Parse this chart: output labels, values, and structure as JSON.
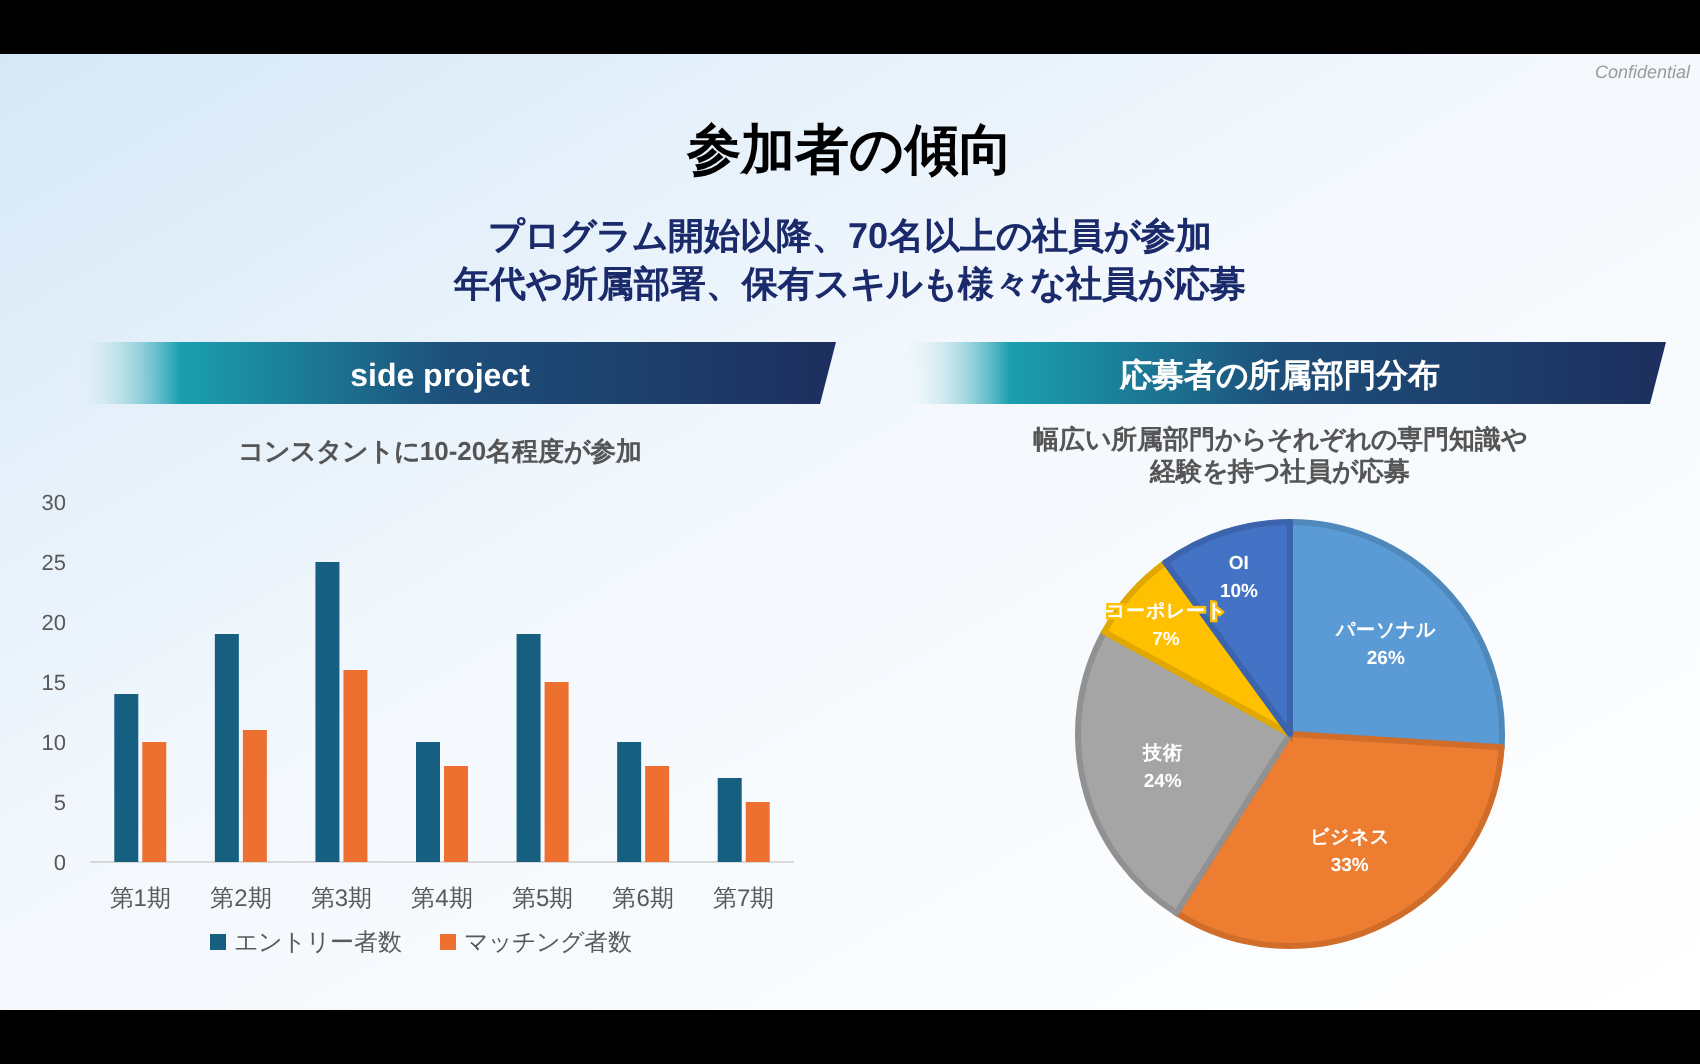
{
  "chart_data": [
    {
      "type": "bar",
      "title": "side project",
      "subtitle": "コンスタントに10-20名程度が参加",
      "annotations": [
        "参加者の傾向",
        "プログラム開始以降、70名以上の社員が参加",
        "年代や所属部署、保有スキルも様々な社員が応募",
        "Confidential"
      ],
      "categories": [
        "第1期",
        "第2期",
        "第3期",
        "第4期",
        "第5期",
        "第6期",
        "第7期"
      ],
      "series": [
        {
          "name": "エントリー者数",
          "color": "#175f80",
          "values": [
            14,
            19,
            25,
            10,
            19,
            10,
            7
          ]
        },
        {
          "name": "マッチング者数",
          "color": "#ed7031",
          "values": [
            10,
            11,
            16,
            8,
            15,
            8,
            5
          ]
        }
      ],
      "ylim": [
        0,
        30
      ],
      "yticks": [
        0,
        5,
        10,
        15,
        20,
        25,
        30
      ],
      "grid": false,
      "legend": "bottom"
    },
    {
      "type": "pie",
      "title": "応募者の所属部門分布",
      "subtitle": "幅広い所属部門からそれぞれの専門知識や経験を持つ社員が応募",
      "categories": [
        "パーソナル",
        "ビジネス",
        "技術",
        "コーポレート",
        "OI"
      ],
      "values": [
        26,
        33,
        24,
        7,
        10
      ],
      "value_labels": [
        "26%",
        "33%",
        "24%",
        "7%",
        "10%"
      ],
      "colors": [
        "#5b9bd5",
        "#ed7d31",
        "#a5a5a5",
        "#ffc000",
        "#4472c4"
      ]
    }
  ]
}
